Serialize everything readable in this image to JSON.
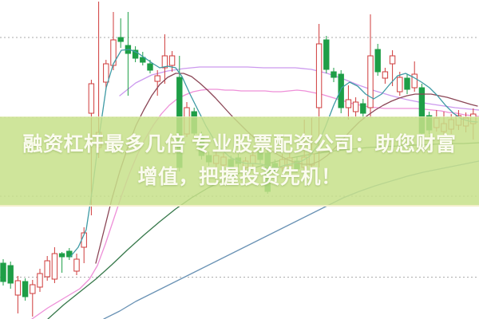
{
  "banner": {
    "line1": "融资杠杆最多几倍 专业股票配资公司：助您财富",
    "line2": "增值，把握投资先机！",
    "bg_color": "#c7e08a",
    "text_color": "#fbfbef"
  },
  "chart_data": {
    "type": "candlestick",
    "title": "",
    "xlabel": "",
    "ylabel": "",
    "note": "no axis tick labels visible in image; prices on relative 0-100 scale",
    "grid": "dotted horizontal gridlines",
    "legend_position": "none",
    "price_range": [
      0,
      100
    ],
    "x_range": [
      0,
      600
    ],
    "x_start": 4,
    "x_step": 9.2,
    "candle_width": 6.4,
    "up_color": "#cf3b3b",
    "down_color": "#1e9e47",
    "grid_color": "#a8a8a8",
    "gridlines_y_price": [
      88.25,
      63.25,
      38.5,
      13.1
    ],
    "candles": [
      [
        17.5,
        18.75,
        10.5,
        11.75
      ],
      [
        16.75,
        18.0,
        9.5,
        11.25
      ],
      [
        7.5,
        13.5,
        1.75,
        12.0
      ],
      [
        11.75,
        12.75,
        5.75,
        7.0
      ],
      [
        8.0,
        12.25,
        0.75,
        10.75
      ],
      [
        10.0,
        15.75,
        8.5,
        14.25
      ],
      [
        13.25,
        19.75,
        12.0,
        18.25
      ],
      [
        12.5,
        22.5,
        11.25,
        20.5
      ],
      [
        20.5,
        21.0,
        14.5,
        19.5
      ],
      [
        21.25,
        22.25,
        18.5,
        19.5
      ],
      [
        15.0,
        20.5,
        13.75,
        18.75
      ],
      [
        22.5,
        28.75,
        17.5,
        27.0
      ],
      [
        64.5,
        75.0,
        32.5,
        73.75
      ],
      [
        53.75,
        99.5,
        50.5,
        58.5
      ],
      [
        74.25,
        81.25,
        72.0,
        80.0
      ],
      [
        79.5,
        96.25,
        78.0,
        87.5
      ],
      [
        88.25,
        94.25,
        85.0,
        87.0
      ],
      [
        85.75,
        96.25,
        70.0,
        83.25
      ],
      [
        84.25,
        85.5,
        80.5,
        81.75
      ],
      [
        82.0,
        83.75,
        79.5,
        80.5
      ],
      [
        80.0,
        81.25,
        77.0,
        78.0
      ],
      [
        74.5,
        78.0,
        70.0,
        76.25
      ],
      [
        78.75,
        89.25,
        73.75,
        82.5
      ],
      [
        79.5,
        84.0,
        77.5,
        82.5
      ],
      [
        75.75,
        82.5,
        46.25,
        47.5
      ],
      [
        58.0,
        68.0,
        57.0,
        66.25
      ],
      [
        65.0,
        66.25,
        57.5,
        58.25
      ],
      [
        57.5,
        58.75,
        50.0,
        51.25
      ],
      [
        51.25,
        52.5,
        48.0,
        49.25
      ],
      [
        48.75,
        53.0,
        47.5,
        51.25
      ],
      [
        48.25,
        52.0,
        47.0,
        50.75
      ],
      [
        50.0,
        51.25,
        46.25,
        47.5
      ],
      [
        50.5,
        51.75,
        47.5,
        48.75
      ],
      [
        47.5,
        50.75,
        46.5,
        49.5
      ],
      [
        48.75,
        52.5,
        47.75,
        51.25
      ],
      [
        52.5,
        53.75,
        48.75,
        50.0
      ],
      [
        52.0,
        53.25,
        39.25,
        40.0
      ],
      [
        48.75,
        50.0,
        45.25,
        46.25
      ],
      [
        47.5,
        51.75,
        46.25,
        50.0
      ],
      [
        48.0,
        52.5,
        47.0,
        50.5
      ],
      [
        49.5,
        50.75,
        46.0,
        47.0
      ],
      [
        47.5,
        62.5,
        46.5,
        50.75
      ],
      [
        48.25,
        63.0,
        47.25,
        51.75
      ],
      [
        66.25,
        92.5,
        47.5,
        86.25
      ],
      [
        87.5,
        88.75,
        77.0,
        78.25
      ],
      [
        77.5,
        78.75,
        74.25,
        75.75
      ],
      [
        76.75,
        78.0,
        64.5,
        66.25
      ],
      [
        66.25,
        73.25,
        62.5,
        68.75
      ],
      [
        65.0,
        69.5,
        63.5,
        68.0
      ],
      [
        67.5,
        69.0,
        63.0,
        64.5
      ],
      [
        66.25,
        95.5,
        63.0,
        82.5
      ],
      [
        84.5,
        86.25,
        76.25,
        77.5
      ],
      [
        75.5,
        78.75,
        73.75,
        77.5
      ],
      [
        80.0,
        84.25,
        73.0,
        82.5
      ],
      [
        71.25,
        77.5,
        70.0,
        75.75
      ],
      [
        75.5,
        76.75,
        70.5,
        72.0
      ],
      [
        72.5,
        80.75,
        71.25,
        76.75
      ],
      [
        72.5,
        73.75,
        57.0,
        58.25
      ],
      [
        63.75,
        65.0,
        58.0,
        59.25
      ],
      [
        60.0,
        65.5,
        58.75,
        63.0
      ],
      [
        58.75,
        65.0,
        57.5,
        61.25
      ],
      [
        59.5,
        64.25,
        58.0,
        62.5
      ],
      [
        60.75,
        65.5,
        59.25,
        63.75
      ],
      [
        60.5,
        64.75,
        58.5,
        63.0
      ],
      [
        61.25,
        66.0,
        56.25,
        64.25
      ]
    ],
    "ma_lines": [
      {
        "name": "ma-long-blue",
        "color": "#6a93b5",
        "over": false,
        "points": [
          [
            130,
            0
          ],
          [
            150,
            2.5
          ],
          [
            170,
            5.5
          ],
          [
            190,
            8
          ],
          [
            210,
            10.5
          ],
          [
            230,
            13
          ],
          [
            250,
            15.5
          ],
          [
            270,
            18
          ],
          [
            290,
            20.5
          ],
          [
            310,
            23
          ],
          [
            330,
            25.5
          ],
          [
            350,
            28
          ],
          [
            370,
            30.5
          ],
          [
            390,
            33
          ],
          [
            410,
            35.5
          ],
          [
            430,
            38
          ],
          [
            450,
            40
          ],
          [
            470,
            41.75
          ],
          [
            490,
            43.25
          ],
          [
            510,
            44.75
          ],
          [
            530,
            46
          ],
          [
            550,
            47
          ],
          [
            570,
            48
          ],
          [
            590,
            49
          ],
          [
            600,
            49.5
          ]
        ]
      },
      {
        "name": "ma-long-green",
        "color": "#36784a",
        "over": false,
        "points": [
          [
            60,
            0
          ],
          [
            80,
            4.5
          ],
          [
            100,
            8.5
          ],
          [
            120,
            12.5
          ],
          [
            140,
            17
          ],
          [
            160,
            21.75
          ],
          [
            180,
            26.25
          ],
          [
            200,
            30.5
          ],
          [
            220,
            34.5
          ],
          [
            240,
            38
          ],
          [
            260,
            41
          ],
          [
            280,
            43.5
          ],
          [
            300,
            45.75
          ],
          [
            320,
            47.5
          ],
          [
            340,
            49
          ],
          [
            360,
            50.25
          ],
          [
            380,
            51.25
          ],
          [
            400,
            52
          ],
          [
            420,
            52.75
          ],
          [
            440,
            53.25
          ],
          [
            460,
            53.75
          ],
          [
            480,
            54
          ],
          [
            500,
            54.25
          ],
          [
            520,
            54.5
          ],
          [
            540,
            54.75
          ],
          [
            560,
            55
          ],
          [
            580,
            55
          ],
          [
            600,
            55.25
          ]
        ]
      },
      {
        "name": "ma-violet",
        "color": "#cc99ee",
        "over": false,
        "points": [
          [
            150,
            70
          ],
          [
            170,
            74
          ],
          [
            190,
            76.5
          ],
          [
            210,
            77.75
          ],
          [
            230,
            78.5
          ],
          [
            250,
            79
          ],
          [
            270,
            79
          ],
          [
            290,
            79
          ],
          [
            310,
            79
          ],
          [
            330,
            78.75
          ],
          [
            350,
            78.75
          ],
          [
            370,
            78.75
          ],
          [
            390,
            78.25
          ],
          [
            410,
            77
          ],
          [
            430,
            75.25
          ],
          [
            450,
            73.25
          ],
          [
            470,
            71.5
          ],
          [
            490,
            70
          ],
          [
            510,
            68.75
          ],
          [
            530,
            67.75
          ],
          [
            550,
            67
          ],
          [
            570,
            66.25
          ],
          [
            590,
            65.75
          ],
          [
            600,
            65.5
          ]
        ]
      },
      {
        "name": "ma-pink",
        "color": "#ee8fd8",
        "over": false,
        "points": [
          [
            40,
            0
          ],
          [
            60,
            3.5
          ],
          [
            80,
            6.5
          ],
          [
            100,
            9.5
          ],
          [
            112,
            12.5
          ],
          [
            122,
            16.75
          ],
          [
            132,
            23.5
          ],
          [
            142,
            31
          ],
          [
            152,
            38.5
          ],
          [
            162,
            45.5
          ],
          [
            172,
            51.5
          ],
          [
            182,
            56.5
          ],
          [
            192,
            60.75
          ],
          [
            202,
            64.25
          ],
          [
            212,
            67
          ],
          [
            222,
            69
          ],
          [
            232,
            70.25
          ],
          [
            242,
            71.25
          ],
          [
            252,
            71.75
          ],
          [
            262,
            72
          ],
          [
            272,
            72
          ],
          [
            282,
            71.75
          ],
          [
            292,
            71.75
          ],
          [
            302,
            71.5
          ],
          [
            312,
            71.5
          ],
          [
            322,
            71.5
          ],
          [
            332,
            71.5
          ],
          [
            342,
            71.25
          ],
          [
            352,
            71.25
          ],
          [
            362,
            71.5
          ],
          [
            372,
            71.75
          ],
          [
            382,
            71.5
          ],
          [
            392,
            71
          ],
          [
            402,
            70.5
          ],
          [
            412,
            69.75
          ],
          [
            422,
            69
          ],
          [
            432,
            68.25
          ],
          [
            442,
            67.5
          ],
          [
            452,
            67
          ],
          [
            462,
            66.5
          ],
          [
            472,
            66.25
          ],
          [
            482,
            66
          ],
          [
            492,
            66
          ],
          [
            502,
            66
          ],
          [
            512,
            66
          ],
          [
            522,
            66
          ],
          [
            532,
            65.75
          ],
          [
            542,
            65.5
          ],
          [
            552,
            65.25
          ],
          [
            562,
            64.75
          ],
          [
            572,
            64.5
          ],
          [
            582,
            64
          ],
          [
            592,
            63.75
          ],
          [
            600,
            63.5
          ]
        ]
      },
      {
        "name": "ma-mid-maroon",
        "color": "#8b4656",
        "over": true,
        "points": [
          [
            120,
            17.5
          ],
          [
            130,
            27.5
          ],
          [
            140,
            37.5
          ],
          [
            150,
            46.25
          ],
          [
            160,
            53.75
          ],
          [
            170,
            60.5
          ],
          [
            180,
            65.5
          ],
          [
            190,
            70
          ],
          [
            200,
            73.5
          ],
          [
            210,
            75.75
          ],
          [
            220,
            77
          ],
          [
            230,
            77
          ],
          [
            240,
            76
          ],
          [
            250,
            74
          ],
          [
            260,
            71.75
          ],
          [
            270,
            69.25
          ],
          [
            280,
            66.5
          ],
          [
            290,
            63.75
          ],
          [
            300,
            61.25
          ],
          [
            310,
            58.75
          ],
          [
            320,
            56.5
          ],
          [
            330,
            54.5
          ],
          [
            340,
            52.75
          ],
          [
            350,
            51.25
          ],
          [
            360,
            50
          ],
          [
            370,
            49
          ],
          [
            380,
            48.5
          ],
          [
            390,
            48.5
          ],
          [
            400,
            49.5
          ],
          [
            410,
            51.25
          ],
          [
            420,
            53.75
          ],
          [
            430,
            56.5
          ],
          [
            440,
            59.25
          ],
          [
            450,
            61.75
          ],
          [
            460,
            63.75
          ],
          [
            470,
            65.5
          ],
          [
            480,
            67
          ],
          [
            490,
            68.25
          ],
          [
            500,
            69.25
          ],
          [
            510,
            70
          ],
          [
            520,
            70.5
          ],
          [
            530,
            70.5
          ],
          [
            540,
            70.5
          ],
          [
            550,
            70
          ],
          [
            560,
            69.5
          ],
          [
            570,
            68.75
          ],
          [
            580,
            68
          ],
          [
            590,
            67.25
          ],
          [
            598,
            66.75
          ]
        ]
      },
      {
        "name": "ma-fast-teal",
        "color": "#3e9aa5",
        "over": true,
        "points": [
          [
            88,
            19.5
          ],
          [
            98,
            22.5
          ],
          [
            108,
            28
          ],
          [
            116,
            41.25
          ],
          [
            124,
            57
          ],
          [
            133,
            72.5
          ],
          [
            142,
            80
          ],
          [
            152,
            84.25
          ],
          [
            162,
            84.5
          ],
          [
            172,
            83.5
          ],
          [
            182,
            81.75
          ],
          [
            192,
            80
          ],
          [
            200,
            78.75
          ],
          [
            210,
            79.25
          ],
          [
            220,
            78.75
          ],
          [
            228,
            76
          ],
          [
            238,
            70.5
          ],
          [
            248,
            65.5
          ],
          [
            258,
            60.5
          ],
          [
            268,
            56.25
          ],
          [
            278,
            53
          ],
          [
            288,
            50.75
          ],
          [
            298,
            49.5
          ],
          [
            308,
            48.75
          ],
          [
            318,
            48.75
          ],
          [
            328,
            48.5
          ],
          [
            338,
            47.5
          ],
          [
            348,
            47.5
          ],
          [
            358,
            48.25
          ],
          [
            368,
            48.75
          ],
          [
            378,
            49.5
          ],
          [
            388,
            51
          ],
          [
            398,
            54.5
          ],
          [
            408,
            60.5
          ],
          [
            418,
            67
          ],
          [
            428,
            72.5
          ],
          [
            438,
            74.25
          ],
          [
            448,
            73
          ],
          [
            458,
            70.5
          ],
          [
            468,
            69
          ],
          [
            478,
            70.5
          ],
          [
            488,
            73.5
          ],
          [
            498,
            76.25
          ],
          [
            508,
            77
          ],
          [
            518,
            75.75
          ],
          [
            528,
            74.25
          ],
          [
            538,
            72.5
          ],
          [
            548,
            70
          ],
          [
            558,
            67
          ],
          [
            568,
            64.5
          ],
          [
            578,
            62.75
          ],
          [
            588,
            62
          ],
          [
            598,
            61.75
          ]
        ]
      }
    ]
  }
}
